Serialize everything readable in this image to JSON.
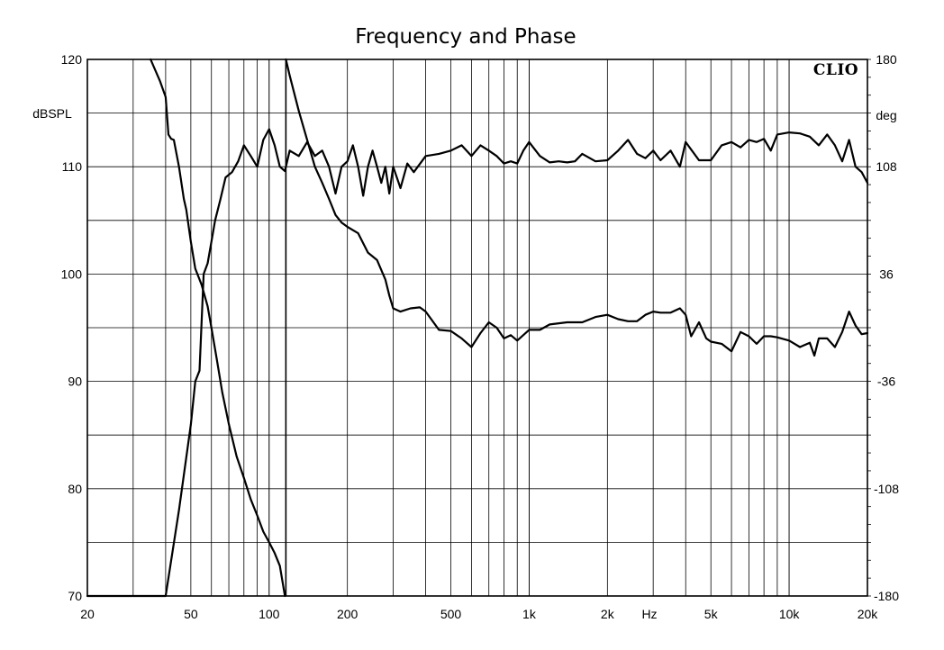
{
  "chart_data": {
    "type": "line",
    "title": "Frequency and Phase",
    "brand": "CLIO",
    "x_axis": {
      "label": "Hz",
      "scale": "log",
      "range": [
        20,
        20000
      ],
      "tick_values": [
        20,
        50,
        100,
        200,
        500,
        1000,
        2000,
        5000,
        10000,
        20000
      ],
      "tick_labels": [
        "20",
        "50",
        "100",
        "200",
        "500",
        "1k",
        "2k",
        "5k",
        "10k",
        "20k"
      ]
    },
    "y_left": {
      "label": "dBSPL",
      "range": [
        70,
        120
      ],
      "tick_values": [
        70,
        80,
        90,
        100,
        110,
        120
      ],
      "tick_labels": [
        "70",
        "80",
        "90",
        "100",
        "110",
        "120"
      ]
    },
    "y_right": {
      "label": "deg",
      "range": [
        -180,
        180
      ],
      "tick_values": [
        -180,
        -108,
        -36,
        36,
        108,
        180
      ],
      "tick_labels": [
        "-180",
        "-108",
        "-36",
        "36",
        "108",
        "180"
      ]
    },
    "grid": true,
    "series": [
      {
        "axis": "left",
        "points": [
          [
            20,
            70
          ],
          [
            25,
            70
          ],
          [
            40,
            70
          ],
          [
            45,
            78
          ],
          [
            50,
            86
          ],
          [
            52,
            90
          ],
          [
            54,
            91
          ],
          [
            56,
            100
          ],
          [
            58,
            101
          ],
          [
            60,
            103
          ],
          [
            62,
            105
          ],
          [
            65,
            107
          ],
          [
            68,
            109
          ],
          [
            72,
            109.5
          ],
          [
            76,
            110.5
          ],
          [
            80,
            112
          ],
          [
            85,
            111
          ],
          [
            90,
            110
          ],
          [
            95,
            112.5
          ],
          [
            100,
            113.5
          ],
          [
            105,
            112
          ],
          [
            110,
            110
          ],
          [
            115,
            109.6
          ],
          [
            120,
            111.5
          ],
          [
            130,
            111
          ],
          [
            140,
            112.3
          ],
          [
            150,
            111
          ],
          [
            160,
            111.5
          ],
          [
            170,
            110
          ],
          [
            180,
            107.5
          ],
          [
            190,
            110
          ],
          [
            200,
            110.5
          ],
          [
            210,
            112
          ],
          [
            220,
            110
          ],
          [
            230,
            107.3
          ],
          [
            240,
            110
          ],
          [
            250,
            111.5
          ],
          [
            260,
            110
          ],
          [
            270,
            108.5
          ],
          [
            280,
            110
          ],
          [
            290,
            107.5
          ],
          [
            300,
            110
          ],
          [
            320,
            108
          ],
          [
            340,
            110.3
          ],
          [
            360,
            109.5
          ],
          [
            400,
            111
          ],
          [
            450,
            111.2
          ],
          [
            500,
            111.5
          ],
          [
            550,
            112
          ],
          [
            600,
            111
          ],
          [
            650,
            112
          ],
          [
            700,
            111.5
          ],
          [
            750,
            111
          ],
          [
            800,
            110.3
          ],
          [
            850,
            110.5
          ],
          [
            900,
            110.3
          ],
          [
            950,
            111.5
          ],
          [
            1000,
            112.3
          ],
          [
            1100,
            111
          ],
          [
            1200,
            110.4
          ],
          [
            1300,
            110.5
          ],
          [
            1400,
            110.4
          ],
          [
            1500,
            110.5
          ],
          [
            1600,
            111.2
          ],
          [
            1800,
            110.5
          ],
          [
            2000,
            110.6
          ],
          [
            2200,
            111.5
          ],
          [
            2400,
            112.5
          ],
          [
            2600,
            111.2
          ],
          [
            2800,
            110.8
          ],
          [
            3000,
            111.5
          ],
          [
            3200,
            110.6
          ],
          [
            3500,
            111.5
          ],
          [
            3800,
            110
          ],
          [
            4000,
            112.3
          ],
          [
            4500,
            110.6
          ],
          [
            5000,
            110.6
          ],
          [
            5500,
            112
          ],
          [
            6000,
            112.3
          ],
          [
            6500,
            111.8
          ],
          [
            7000,
            112.5
          ],
          [
            7500,
            112.3
          ],
          [
            8000,
            112.6
          ],
          [
            8500,
            111.5
          ],
          [
            9000,
            113
          ],
          [
            10000,
            113.2
          ],
          [
            11000,
            113.1
          ],
          [
            12000,
            112.8
          ],
          [
            13000,
            112
          ],
          [
            14000,
            113
          ],
          [
            15000,
            112
          ],
          [
            16000,
            110.5
          ],
          [
            17000,
            112.5
          ],
          [
            18000,
            110
          ],
          [
            19000,
            109.5
          ],
          [
            20000,
            108.5
          ]
        ]
      },
      {
        "axis": "left",
        "points": [
          [
            35,
            120
          ],
          [
            38,
            118
          ],
          [
            40,
            116.5
          ],
          [
            41,
            113
          ],
          [
            42,
            112.6
          ],
          [
            43,
            112.5
          ],
          [
            45,
            110
          ],
          [
            47,
            107
          ],
          [
            48,
            106
          ],
          [
            50,
            103
          ],
          [
            52,
            100.5
          ],
          [
            55,
            99
          ],
          [
            58,
            97
          ],
          [
            60,
            95
          ],
          [
            63,
            92
          ],
          [
            66,
            89
          ],
          [
            70,
            86
          ],
          [
            75,
            83
          ],
          [
            80,
            81
          ],
          [
            85,
            79
          ],
          [
            90,
            77.5
          ],
          [
            95,
            76
          ],
          [
            100,
            75
          ],
          [
            105,
            74
          ],
          [
            110,
            72.8
          ],
          [
            115,
            70
          ],
          [
            116,
            120
          ],
          [
            120,
            118.5
          ],
          [
            130,
            115.2
          ],
          [
            140,
            112.5
          ],
          [
            150,
            110
          ],
          [
            160,
            108.5
          ],
          [
            170,
            107
          ],
          [
            180,
            105.5
          ],
          [
            190,
            104.8
          ],
          [
            200,
            104.4
          ],
          [
            220,
            103.8
          ],
          [
            240,
            102
          ],
          [
            260,
            101.3
          ],
          [
            280,
            99.5
          ],
          [
            290,
            98
          ],
          [
            300,
            96.8
          ],
          [
            320,
            96.5
          ],
          [
            350,
            96.8
          ],
          [
            380,
            96.9
          ],
          [
            400,
            96.5
          ],
          [
            450,
            94.8
          ],
          [
            500,
            94.7
          ],
          [
            550,
            94
          ],
          [
            600,
            93.2
          ],
          [
            650,
            94.5
          ],
          [
            700,
            95.5
          ],
          [
            750,
            95
          ],
          [
            800,
            94
          ],
          [
            850,
            94.3
          ],
          [
            900,
            93.8
          ],
          [
            1000,
            94.8
          ],
          [
            1100,
            94.8
          ],
          [
            1200,
            95.3
          ],
          [
            1400,
            95.5
          ],
          [
            1600,
            95.5
          ],
          [
            1800,
            96
          ],
          [
            2000,
            96.2
          ],
          [
            2200,
            95.8
          ],
          [
            2400,
            95.6
          ],
          [
            2600,
            95.6
          ],
          [
            2800,
            96.2
          ],
          [
            3000,
            96.5
          ],
          [
            3200,
            96.4
          ],
          [
            3500,
            96.4
          ],
          [
            3800,
            96.8
          ],
          [
            4000,
            96.2
          ],
          [
            4200,
            94.2
          ],
          [
            4500,
            95.5
          ],
          [
            4800,
            94
          ],
          [
            5000,
            93.7
          ],
          [
            5500,
            93.5
          ],
          [
            6000,
            92.8
          ],
          [
            6500,
            94.6
          ],
          [
            7000,
            94.2
          ],
          [
            7500,
            93.5
          ],
          [
            8000,
            94.2
          ],
          [
            8500,
            94.2
          ],
          [
            9000,
            94.1
          ],
          [
            10000,
            93.8
          ],
          [
            11000,
            93.2
          ],
          [
            12000,
            93.6
          ],
          [
            12500,
            92.4
          ],
          [
            13000,
            94
          ],
          [
            14000,
            94
          ],
          [
            15000,
            93.2
          ],
          [
            16000,
            94.6
          ],
          [
            17000,
            96.5
          ],
          [
            18000,
            95.2
          ],
          [
            19000,
            94.4
          ],
          [
            20000,
            94.5
          ]
        ]
      }
    ]
  }
}
